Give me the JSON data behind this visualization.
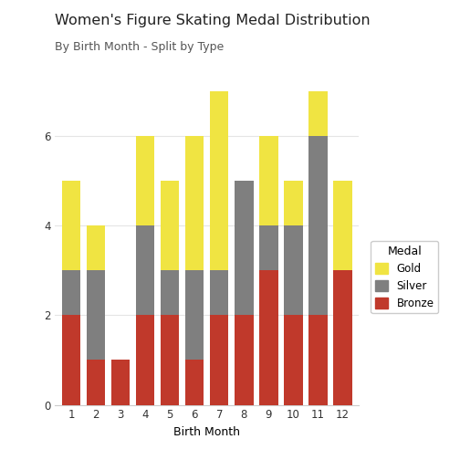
{
  "title": "Women's Figure Skating Medal Distribution",
  "subtitle": "By Birth Month - Split by Type",
  "xlabel": "Birth Month",
  "months": [
    1,
    2,
    3,
    4,
    5,
    6,
    7,
    8,
    9,
    10,
    11,
    12
  ],
  "bronze": [
    2,
    1,
    1,
    2,
    2,
    1,
    2,
    2,
    3,
    2,
    2,
    3
  ],
  "silver": [
    1,
    2,
    0,
    2,
    1,
    2,
    1,
    3,
    1,
    2,
    4,
    0
  ],
  "gold": [
    2,
    1,
    0,
    2,
    2,
    3,
    4,
    0,
    2,
    1,
    1,
    2
  ],
  "bronze_color": "#C0392B",
  "silver_color": "#7F7F7F",
  "gold_color": "#F0E442",
  "background_color": "#FFFFFF",
  "grid_color": "#E5E5E5",
  "ylim": [
    0,
    7.5
  ],
  "yticks": [
    0,
    2,
    4,
    6
  ],
  "bar_width": 0.75,
  "title_fontsize": 11.5,
  "subtitle_fontsize": 9,
  "axis_label_fontsize": 9,
  "tick_fontsize": 8.5,
  "legend_title_fontsize": 9,
  "legend_fontsize": 8.5
}
